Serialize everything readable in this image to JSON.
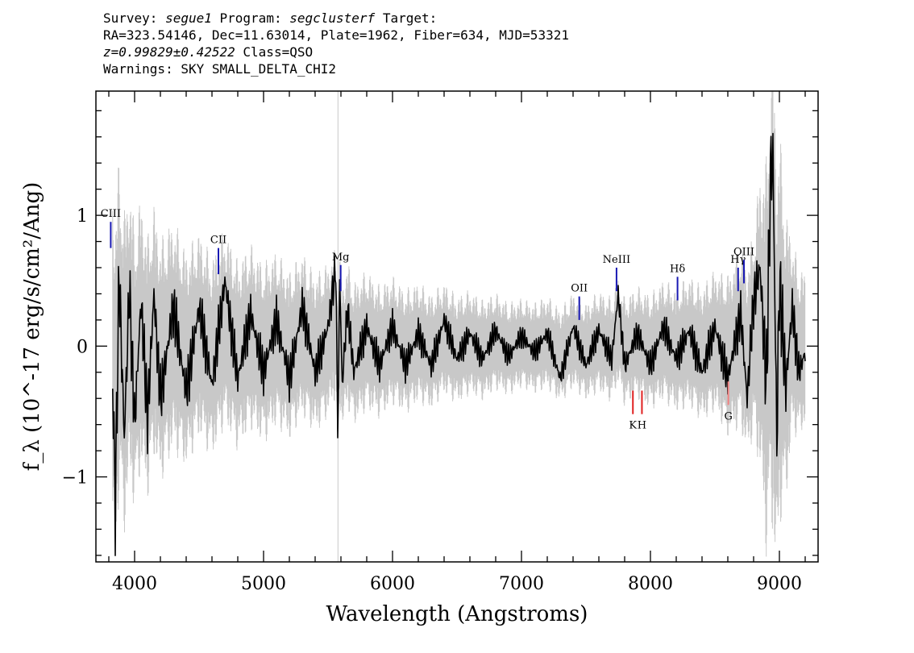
{
  "header": {
    "survey_label": "Survey:",
    "survey_value": "segue1",
    "program_label": "Program:",
    "program_value": "segclusterf",
    "target_label": "Target:",
    "line2": "RA=323.54146, Dec=11.63014, Plate=1962, Fiber=634, MJD=53321",
    "redshift": "z=0.99829±0.42522",
    "class_text": "Class=QSO",
    "warnings": "Warnings: SKY SMALL_DELTA_CHI2"
  },
  "chart_data": {
    "type": "line",
    "xlabel": "Wavelength (Angstroms)",
    "ylabel": "f_λ (10^-17 erg/s/cm²/Ang)",
    "xlim": [
      3700,
      9300
    ],
    "ylim": [
      -1.65,
      1.95
    ],
    "x_ticks": [
      4000,
      5000,
      6000,
      7000,
      8000,
      9000
    ],
    "y_ticks": [
      -1,
      0,
      1
    ],
    "x_tick_labels": [
      "4000",
      "5000",
      "6000",
      "7000",
      "8000",
      "9000"
    ],
    "y_tick_labels": [
      "−1",
      "0",
      "1"
    ],
    "colors": {
      "flux": "#000000",
      "error": "#c8c8c8",
      "emission": "#1a1ab4",
      "absorption": "#e02020",
      "absorption_light": "#f08080"
    },
    "series": [
      {
        "role": "flux",
        "x": [
          3830,
          3850,
          3880,
          3920,
          3960,
          4000,
          4050,
          4100,
          4150,
          4200,
          4300,
          4400,
          4500,
          4600,
          4700,
          4800,
          4900,
          5000,
          5100,
          5200,
          5300,
          5400,
          5500,
          5560,
          5577,
          5590,
          5610,
          5650,
          5700,
          5800,
          5900,
          6000,
          6100,
          6200,
          6300,
          6400,
          6500,
          6600,
          6700,
          6800,
          6900,
          7000,
          7100,
          7200,
          7300,
          7400,
          7500,
          7600,
          7700,
          7750,
          7800,
          7900,
          8000,
          8100,
          8200,
          8300,
          8400,
          8500,
          8600,
          8700,
          8750,
          8800,
          8850,
          8900,
          8930,
          8950,
          8980,
          9000,
          9050,
          9100,
          9150,
          9200
        ],
        "y": [
          -0.25,
          -1.25,
          0.55,
          -0.7,
          0.45,
          -0.6,
          0.35,
          -0.55,
          0.4,
          -0.4,
          0.3,
          -0.35,
          0.3,
          -0.3,
          0.5,
          -0.25,
          0.25,
          -0.2,
          0.2,
          -0.25,
          0.3,
          -0.2,
          0.15,
          0.6,
          -0.75,
          0.55,
          -0.3,
          0.3,
          -0.2,
          0.15,
          -0.15,
          0.15,
          -0.15,
          0.1,
          -0.15,
          0.2,
          -0.1,
          0.1,
          -0.1,
          0.12,
          -0.08,
          0.08,
          -0.05,
          0.1,
          -0.25,
          0.15,
          -0.15,
          0.12,
          -0.1,
          0.4,
          -0.15,
          0.1,
          -0.15,
          0.15,
          -0.1,
          0.12,
          -0.2,
          0.15,
          -0.25,
          0.25,
          -0.4,
          0.35,
          0.6,
          -0.3,
          1.3,
          1.45,
          -0.75,
          0.5,
          -0.3,
          0.3,
          -0.2,
          -0.05
        ]
      },
      {
        "role": "error_envelope",
        "x": [
          3830,
          3900,
          4000,
          4200,
          4500,
          5000,
          5500,
          6000,
          6500,
          7000,
          7500,
          8000,
          8500,
          8800,
          8950,
          9100,
          9200
        ],
        "y": [
          1.4,
          1.3,
          1.1,
          0.95,
          0.8,
          0.7,
          0.6,
          0.5,
          0.42,
          0.35,
          0.38,
          0.45,
          0.55,
          0.8,
          1.95,
          0.75,
          0.6
        ]
      }
    ],
    "line_markers": [
      {
        "label": "CIII",
        "x": 3815,
        "y_from": 0.75,
        "y_to": 0.95,
        "kind": "emission"
      },
      {
        "label": "CII",
        "x": 4650,
        "y_from": 0.55,
        "y_to": 0.75,
        "kind": "emission"
      },
      {
        "label": "Mg",
        "x": 5598,
        "y_from": 0.42,
        "y_to": 0.62,
        "kind": "emission"
      },
      {
        "label": "OII",
        "x": 7448,
        "y_from": 0.2,
        "y_to": 0.38,
        "kind": "emission"
      },
      {
        "label": "NeIII",
        "x": 7737,
        "y_from": 0.42,
        "y_to": 0.6,
        "kind": "emission"
      },
      {
        "label": "Hδ",
        "x": 8210,
        "y_from": 0.35,
        "y_to": 0.53,
        "kind": "emission"
      },
      {
        "label": "Hγ",
        "x": 8680,
        "y_from": 0.42,
        "y_to": 0.6,
        "kind": "emission"
      },
      {
        "label": "OIII",
        "x": 8725,
        "y_from": 0.48,
        "y_to": 0.66,
        "kind": "emission"
      },
      {
        "label": "K",
        "x": 7864,
        "y_from": -0.52,
        "y_to": -0.34,
        "kind": "absorption"
      },
      {
        "label": "H",
        "x": 7934,
        "y_from": -0.52,
        "y_to": -0.34,
        "kind": "absorption"
      },
      {
        "label": "G",
        "x": 8604,
        "y_from": -0.45,
        "y_to": -0.27,
        "kind": "absorption_light"
      }
    ]
  }
}
